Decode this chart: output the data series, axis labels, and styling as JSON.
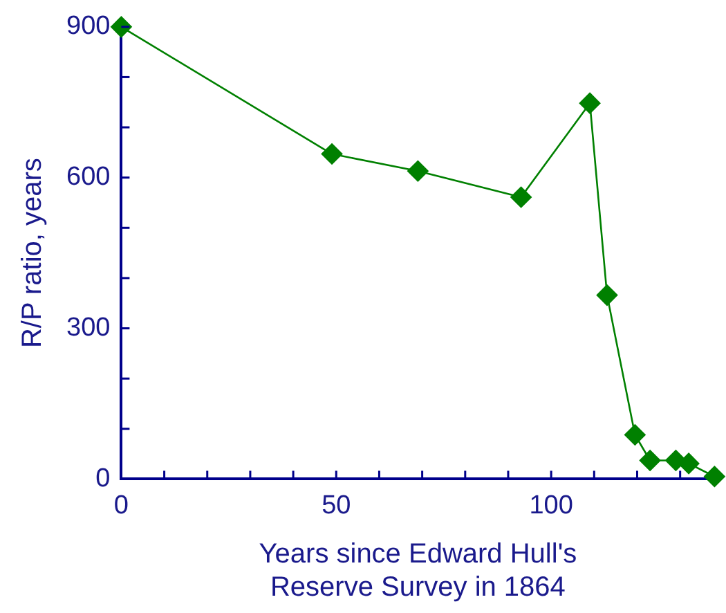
{
  "chart_data": {
    "type": "line",
    "xlabel": "Years since Edward Hull's Reserve Survey in 1864",
    "ylabel": "R/P ratio, years",
    "x": [
      0,
      49,
      69,
      93,
      109,
      113,
      119.5,
      123,
      129,
      132,
      138
    ],
    "series": [
      {
        "color": "#008000",
        "values": [
          900,
          647,
          613,
          561,
          748,
          366,
          88,
          37,
          37,
          31,
          5
        ]
      }
    ],
    "xlim": [
      0,
      138
    ],
    "xticks": [
      0,
      {
        "value": 10,
        "label": null
      },
      {
        "value": 20,
        "label": null
      },
      {
        "value": 30,
        "label": null
      },
      {
        "value": 40,
        "label": null
      },
      50,
      {
        "value": 60,
        "label": null
      },
      {
        "value": 70,
        "label": null
      },
      {
        "value": 80,
        "label": null
      },
      {
        "value": 90,
        "label": null
      },
      100,
      {
        "value": 110,
        "label": null
      },
      {
        "value": 120,
        "label": null
      },
      {
        "value": 130,
        "label": null
      }
    ],
    "ylim": [
      0,
      900
    ],
    "yticks": [
      0,
      {
        "value": 100,
        "label": null
      },
      {
        "value": 200,
        "label": null
      },
      300,
      {
        "value": 400,
        "label": null
      },
      {
        "value": 500,
        "label": null
      },
      600,
      {
        "value": 700,
        "label": null
      },
      {
        "value": 800,
        "label": null
      },
      900
    ],
    "grid": false,
    "legend": false,
    "marker": "diamond",
    "line_style": "solid"
  }
}
